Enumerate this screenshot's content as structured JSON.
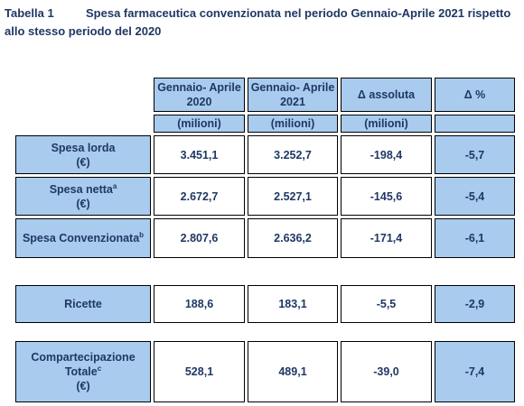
{
  "title": {
    "label": "Tabella 1",
    "text": "Spesa farmaceutica convenzionata nel periodo Gennaio-Aprile 2021 rispetto allo stesso periodo del 2020"
  },
  "table": {
    "columns": [
      "Gennaio- Aprile 2020",
      "Gennaio- Aprile 2021",
      "Δ assoluta",
      "Δ %"
    ],
    "units": [
      "(milioni)",
      "(milioni)",
      "(milioni)"
    ],
    "rows": [
      {
        "label_lines": [
          "Spesa lorda"
        ],
        "unit": "(€)",
        "values": [
          "3.451,1",
          "3.252,7",
          "-198,4",
          "-5,7"
        ]
      },
      {
        "label_lines": [
          "Spesa netta"
        ],
        "note": "a",
        "unit": "(€)",
        "values": [
          "2.672,7",
          "2.527,1",
          "-145,6",
          "-5,4"
        ]
      },
      {
        "label_lines": [
          "Spesa Convenzionata"
        ],
        "note": "b",
        "values": [
          "2.807,6",
          "2.636,2",
          "-171,4",
          "-6,1"
        ]
      },
      {
        "label_lines": [
          "Ricette"
        ],
        "values": [
          "188,6",
          "183,1",
          "-5,5",
          "-2,9"
        ]
      },
      {
        "label_lines": [
          "Compartecipazione",
          "Totale"
        ],
        "note": "c",
        "unit": "(€)",
        "values": [
          "528,1",
          "489,1",
          "-39,0",
          "-7,4"
        ]
      }
    ]
  }
}
